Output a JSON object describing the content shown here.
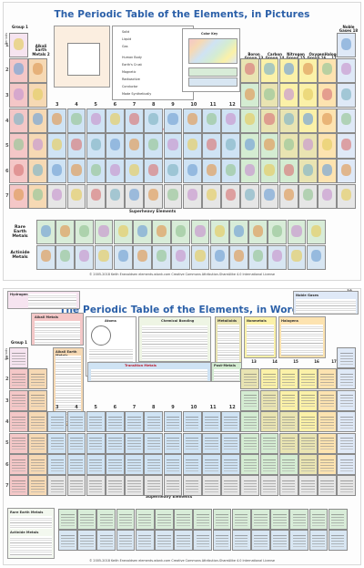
{
  "poster_pictures": {
    "title": "The Periodic Table of the Elements, in Pictures",
    "groups": {
      "g1": "Group 1",
      "g2": "Alkali Earth Metals 2",
      "g13": "Boron Group 13",
      "g14": "Carbon Group 14",
      "g15": "Nitrogen Group 15",
      "g16": "Oxygen Group 16",
      "g17": "Halogens 17",
      "g18": "Noble Gases 18"
    },
    "transition_label": "Transition Metals",
    "transition_numbers": [
      "3",
      "4",
      "5",
      "6",
      "7",
      "8",
      "9",
      "10",
      "11",
      "12"
    ],
    "periods": [
      "1",
      "2",
      "3",
      "4",
      "5",
      "6",
      "7"
    ],
    "periods_axis": "Periods",
    "superheavy": "Superheavy Elements",
    "rare_earth": "Rare Earth Metals",
    "actinide": "Actinide Metals",
    "color_key": "Color Key",
    "key_items": [
      "Solid",
      "Liquid",
      "Gas",
      "Human Body",
      "Earth's Crust",
      "Magnetic",
      "Radioactive",
      "Conductor",
      "Made Synthetically"
    ],
    "credit": "© 2005-2018 Keith Enevoldsen  elements.wlonk.com  Creative Commons Attribution-ShareAlike 4.0 International License"
  },
  "poster_words": {
    "title": "The Periodic Table of the Elements, in Words",
    "groups": {
      "g1": "Group 1",
      "g2": "2",
      "g13": "13",
      "g14": "14",
      "g15": "15",
      "g16": "16",
      "g17": "17",
      "g18": "18"
    },
    "transition_label": "Transition Metals",
    "post_label": "Post-Metals",
    "transition_numbers": [
      "3",
      "4",
      "5",
      "6",
      "7",
      "8",
      "9",
      "10",
      "11",
      "12"
    ],
    "periods": [
      "1",
      "2",
      "3",
      "4",
      "5",
      "6",
      "7"
    ],
    "periods_axis": "Periods",
    "superheavy": "Superheavy Elements",
    "hydrogen": "Hydrogen",
    "alkali": "Alkali Metals",
    "alkali_earth": "Alkali Earth Metals",
    "atoms": "Atoms",
    "chem_bonding": "Chemical Bonding",
    "metalloids": "Metalloids",
    "nonmetals": "Nonmetals",
    "halogens": "Halogens",
    "noble_gases": "Noble Gases",
    "rare_earth": "Rare Earth Metals",
    "actinide": "Actinide Metals",
    "credit": "© 2005-2018 Keith Enevoldsen  elements.wlonk.com  Creative Commons Attribution-ShareAlike 4.0 International License"
  },
  "colors": {
    "alkali": "#f4c7c7",
    "alkali_earth": "#f6d9b4",
    "transition": "#cfe3f4",
    "post": "#d4ecd2",
    "metalloid": "#e9e4b2",
    "nonmetal": "#fbf1a8",
    "halogen": "#fde3b0",
    "noble": "#dfe9f7",
    "lanthanide": "#d8ecd8",
    "actinide": "#d8e6f2",
    "superheavy": "#e6e6e6",
    "hydrogen": "#f6e4f0",
    "title": "#2a5fa8"
  }
}
